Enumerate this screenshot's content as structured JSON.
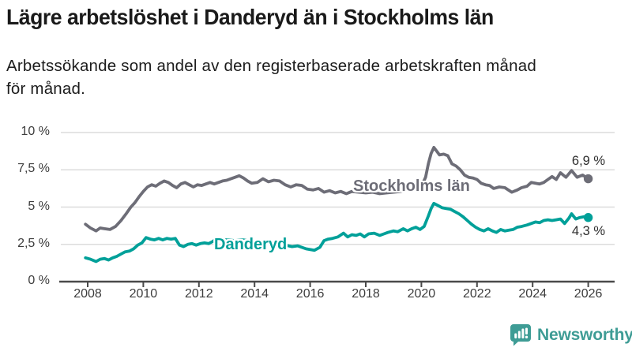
{
  "header": {
    "title": "Lägre arbetslöshet i Danderyd än i Stockholms län",
    "subtitle_line1": "Arbetssökande som andel av den registerbaserade arbetskraften månad",
    "subtitle_line2": "för månad."
  },
  "logo": {
    "text": "Newsworthy",
    "color": "#3e9c95",
    "icon": "newsworthy-chart-bubble-icon"
  },
  "colors": {
    "stockholm_line": "#6d6d77",
    "danderyd_line": "#00a099",
    "gridline": "#dcdcdc",
    "axis": "#4a4a4a",
    "text_dark": "#1a1a1a",
    "axis_text": "#3d3d3d"
  },
  "chart_data": {
    "type": "line",
    "title": "Lägre arbetslöshet i Danderyd än i Stockholms län",
    "subtitle": "Arbetssökande som andel av den registerbaserade arbetskraften månad för månad.",
    "xlabel": "",
    "ylabel": "",
    "ylim": [
      0,
      10
    ],
    "xlim": [
      2007.9,
      2026.9
    ],
    "grid": true,
    "legend_position": "inline-labels",
    "y_ticks": [
      {
        "value": 10,
        "label": "10 %"
      },
      {
        "value": 7.5,
        "label": "7,5 %"
      },
      {
        "value": 5,
        "label": "5 %"
      },
      {
        "value": 2.5,
        "label": "2,5 %"
      },
      {
        "value": 0,
        "label": "0 %"
      }
    ],
    "x_ticks": [
      {
        "value": 2008,
        "label": "2008"
      },
      {
        "value": 2010,
        "label": "2010"
      },
      {
        "value": 2012,
        "label": "2012"
      },
      {
        "value": 2014,
        "label": "2014"
      },
      {
        "value": 2016,
        "label": "2016"
      },
      {
        "value": 2018,
        "label": "2018"
      },
      {
        "value": 2020,
        "label": "2020"
      },
      {
        "value": 2022,
        "label": "2022"
      },
      {
        "value": 2024,
        "label": "2024"
      },
      {
        "value": 2026,
        "label": "2026"
      }
    ],
    "series": [
      {
        "name": "Stockholms län",
        "color": "#6d6d77",
        "end_value": 6.9,
        "end_label": "6,9 %",
        "points": [
          [
            2007.92,
            3.85
          ],
          [
            2008.1,
            3.6
          ],
          [
            2008.3,
            3.4
          ],
          [
            2008.45,
            3.6
          ],
          [
            2008.6,
            3.55
          ],
          [
            2008.8,
            3.5
          ],
          [
            2009.0,
            3.7
          ],
          [
            2009.2,
            4.1
          ],
          [
            2009.4,
            4.6
          ],
          [
            2009.55,
            5.0
          ],
          [
            2009.7,
            5.3
          ],
          [
            2009.85,
            5.7
          ],
          [
            2010.0,
            6.05
          ],
          [
            2010.15,
            6.35
          ],
          [
            2010.3,
            6.5
          ],
          [
            2010.45,
            6.4
          ],
          [
            2010.6,
            6.6
          ],
          [
            2010.75,
            6.75
          ],
          [
            2010.9,
            6.65
          ],
          [
            2011.05,
            6.45
          ],
          [
            2011.2,
            6.3
          ],
          [
            2011.35,
            6.55
          ],
          [
            2011.5,
            6.65
          ],
          [
            2011.65,
            6.5
          ],
          [
            2011.8,
            6.35
          ],
          [
            2011.95,
            6.5
          ],
          [
            2012.1,
            6.45
          ],
          [
            2012.25,
            6.55
          ],
          [
            2012.4,
            6.65
          ],
          [
            2012.55,
            6.55
          ],
          [
            2012.7,
            6.65
          ],
          [
            2012.85,
            6.75
          ],
          [
            2013.0,
            6.8
          ],
          [
            2013.15,
            6.9
          ],
          [
            2013.3,
            7.0
          ],
          [
            2013.45,
            7.1
          ],
          [
            2013.6,
            6.95
          ],
          [
            2013.75,
            6.75
          ],
          [
            2013.9,
            6.6
          ],
          [
            2014.1,
            6.65
          ],
          [
            2014.3,
            6.9
          ],
          [
            2014.5,
            6.7
          ],
          [
            2014.7,
            6.8
          ],
          [
            2014.9,
            6.75
          ],
          [
            2015.1,
            6.5
          ],
          [
            2015.3,
            6.35
          ],
          [
            2015.5,
            6.5
          ],
          [
            2015.7,
            6.45
          ],
          [
            2015.9,
            6.2
          ],
          [
            2016.1,
            6.15
          ],
          [
            2016.3,
            6.25
          ],
          [
            2016.5,
            6.0
          ],
          [
            2016.7,
            6.1
          ],
          [
            2016.9,
            5.95
          ],
          [
            2017.1,
            6.05
          ],
          [
            2017.3,
            5.9
          ],
          [
            2017.5,
            6.05
          ],
          [
            2017.75,
            6.0
          ],
          [
            2018.0,
            5.95
          ],
          [
            2018.25,
            6.0
          ],
          [
            2018.5,
            5.9
          ],
          [
            2018.75,
            5.95
          ],
          [
            2019.0,
            6.0
          ],
          [
            2019.25,
            6.05
          ],
          [
            2019.5,
            6.15
          ],
          [
            2019.7,
            6.25
          ],
          [
            2019.9,
            6.35
          ],
          [
            2020.05,
            6.6
          ],
          [
            2020.15,
            7.0
          ],
          [
            2020.25,
            7.9
          ],
          [
            2020.35,
            8.6
          ],
          [
            2020.45,
            9.0
          ],
          [
            2020.55,
            8.75
          ],
          [
            2020.65,
            8.5
          ],
          [
            2020.8,
            8.55
          ],
          [
            2020.95,
            8.45
          ],
          [
            2021.1,
            7.9
          ],
          [
            2021.25,
            7.75
          ],
          [
            2021.4,
            7.5
          ],
          [
            2021.55,
            7.15
          ],
          [
            2021.7,
            7.0
          ],
          [
            2021.85,
            6.95
          ],
          [
            2022.0,
            6.85
          ],
          [
            2022.15,
            6.6
          ],
          [
            2022.3,
            6.5
          ],
          [
            2022.45,
            6.45
          ],
          [
            2022.6,
            6.25
          ],
          [
            2022.8,
            6.35
          ],
          [
            2023.0,
            6.3
          ],
          [
            2023.25,
            6.0
          ],
          [
            2023.45,
            6.15
          ],
          [
            2023.6,
            6.3
          ],
          [
            2023.8,
            6.4
          ],
          [
            2023.95,
            6.65
          ],
          [
            2024.1,
            6.6
          ],
          [
            2024.25,
            6.55
          ],
          [
            2024.4,
            6.65
          ],
          [
            2024.55,
            6.85
          ],
          [
            2024.7,
            7.05
          ],
          [
            2024.85,
            6.85
          ],
          [
            2025.0,
            7.3
          ],
          [
            2025.2,
            7.0
          ],
          [
            2025.4,
            7.45
          ],
          [
            2025.6,
            7.0
          ],
          [
            2025.8,
            7.15
          ],
          [
            2026.0,
            6.9
          ]
        ]
      },
      {
        "name": "Danderyd",
        "color": "#00a099",
        "end_value": 4.3,
        "end_label": "4,3 %",
        "points": [
          [
            2007.92,
            1.6
          ],
          [
            2008.1,
            1.5
          ],
          [
            2008.3,
            1.35
          ],
          [
            2008.45,
            1.5
          ],
          [
            2008.6,
            1.55
          ],
          [
            2008.75,
            1.45
          ],
          [
            2008.9,
            1.6
          ],
          [
            2009.05,
            1.7
          ],
          [
            2009.2,
            1.85
          ],
          [
            2009.35,
            2.0
          ],
          [
            2009.5,
            2.05
          ],
          [
            2009.65,
            2.2
          ],
          [
            2009.8,
            2.45
          ],
          [
            2009.95,
            2.6
          ],
          [
            2010.1,
            2.95
          ],
          [
            2010.25,
            2.85
          ],
          [
            2010.4,
            2.8
          ],
          [
            2010.55,
            2.9
          ],
          [
            2010.7,
            2.8
          ],
          [
            2010.85,
            2.9
          ],
          [
            2011.0,
            2.85
          ],
          [
            2011.15,
            2.9
          ],
          [
            2011.3,
            2.45
          ],
          [
            2011.45,
            2.35
          ],
          [
            2011.6,
            2.5
          ],
          [
            2011.75,
            2.55
          ],
          [
            2011.9,
            2.45
          ],
          [
            2012.05,
            2.55
          ],
          [
            2012.2,
            2.6
          ],
          [
            2012.35,
            2.55
          ],
          [
            2012.5,
            2.7
          ],
          [
            2012.65,
            2.9
          ],
          [
            2012.8,
            2.85
          ],
          [
            2013.0,
            2.8
          ],
          [
            2013.3,
            2.75
          ],
          [
            2013.6,
            2.8
          ],
          [
            2013.9,
            2.7
          ],
          [
            2014.2,
            2.65
          ],
          [
            2014.5,
            2.6
          ],
          [
            2014.8,
            2.5
          ],
          [
            2015.1,
            2.45
          ],
          [
            2015.35,
            2.35
          ],
          [
            2015.55,
            2.4
          ],
          [
            2015.85,
            2.2
          ],
          [
            2016.15,
            2.1
          ],
          [
            2016.35,
            2.3
          ],
          [
            2016.5,
            2.75
          ],
          [
            2016.65,
            2.85
          ],
          [
            2016.8,
            2.9
          ],
          [
            2017.0,
            3.0
          ],
          [
            2017.2,
            3.25
          ],
          [
            2017.35,
            3.0
          ],
          [
            2017.5,
            3.15
          ],
          [
            2017.65,
            3.1
          ],
          [
            2017.8,
            3.2
          ],
          [
            2017.95,
            3.0
          ],
          [
            2018.1,
            3.2
          ],
          [
            2018.3,
            3.25
          ],
          [
            2018.5,
            3.1
          ],
          [
            2018.65,
            3.2
          ],
          [
            2018.8,
            3.3
          ],
          [
            2019.0,
            3.4
          ],
          [
            2019.15,
            3.35
          ],
          [
            2019.35,
            3.55
          ],
          [
            2019.5,
            3.4
          ],
          [
            2019.65,
            3.55
          ],
          [
            2019.8,
            3.65
          ],
          [
            2019.95,
            3.5
          ],
          [
            2020.1,
            3.7
          ],
          [
            2020.25,
            4.4
          ],
          [
            2020.35,
            4.9
          ],
          [
            2020.45,
            5.25
          ],
          [
            2020.6,
            5.1
          ],
          [
            2020.75,
            4.95
          ],
          [
            2020.9,
            4.9
          ],
          [
            2021.05,
            4.85
          ],
          [
            2021.2,
            4.7
          ],
          [
            2021.35,
            4.55
          ],
          [
            2021.5,
            4.35
          ],
          [
            2021.65,
            4.1
          ],
          [
            2021.8,
            3.85
          ],
          [
            2021.95,
            3.65
          ],
          [
            2022.1,
            3.5
          ],
          [
            2022.25,
            3.4
          ],
          [
            2022.4,
            3.55
          ],
          [
            2022.55,
            3.4
          ],
          [
            2022.7,
            3.3
          ],
          [
            2022.85,
            3.5
          ],
          [
            2023.0,
            3.4
          ],
          [
            2023.15,
            3.45
          ],
          [
            2023.3,
            3.5
          ],
          [
            2023.45,
            3.65
          ],
          [
            2023.6,
            3.7
          ],
          [
            2023.8,
            3.8
          ],
          [
            2023.95,
            3.9
          ],
          [
            2024.1,
            4.0
          ],
          [
            2024.25,
            3.95
          ],
          [
            2024.4,
            4.1
          ],
          [
            2024.55,
            4.15
          ],
          [
            2024.7,
            4.1
          ],
          [
            2024.85,
            4.15
          ],
          [
            2025.0,
            4.2
          ],
          [
            2025.15,
            3.9
          ],
          [
            2025.3,
            4.25
          ],
          [
            2025.4,
            4.55
          ],
          [
            2025.55,
            4.2
          ],
          [
            2025.7,
            4.3
          ],
          [
            2025.85,
            4.35
          ],
          [
            2026.0,
            4.3
          ]
        ]
      }
    ]
  }
}
